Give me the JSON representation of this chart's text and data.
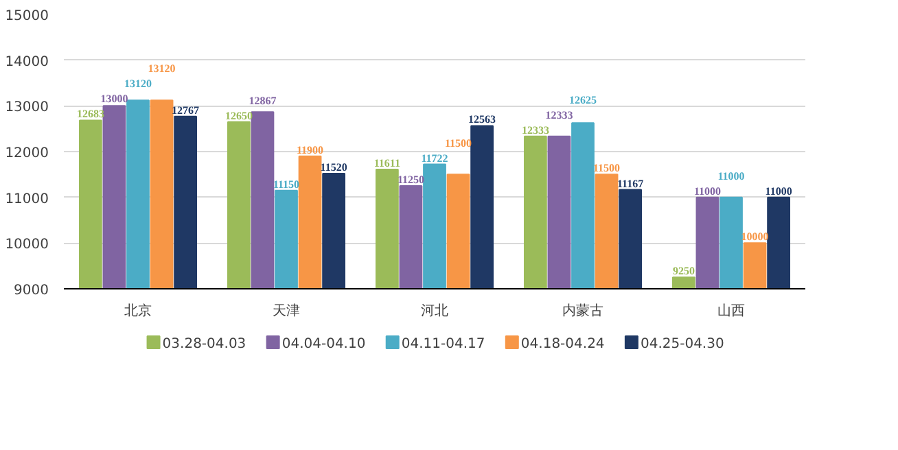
{
  "chart_data": {
    "type": "bar",
    "categories": [
      "北京",
      "天津",
      "河北",
      "内蒙古",
      "山西"
    ],
    "series": [
      {
        "name": "03.28-04.03",
        "color": "#9bbb59",
        "values": [
          12683,
          12650,
          11611,
          12333,
          9250
        ]
      },
      {
        "name": "04.04-04.10",
        "color": "#8064a2",
        "values": [
          13000,
          12867,
          11250,
          12333,
          11000
        ]
      },
      {
        "name": "04.11-04.17",
        "color": "#4bacc6",
        "values": [
          13120,
          11150,
          11722,
          12625,
          11000
        ]
      },
      {
        "name": "04.18-04.24",
        "color": "#f79646",
        "values": [
          13120,
          11900,
          11500,
          11500,
          10000
        ]
      },
      {
        "name": "04.25-04.30",
        "color": "#1f3864",
        "values": [
          12767,
          11520,
          12563,
          11167,
          11000
        ]
      }
    ],
    "ylim": [
      9000,
      15000
    ],
    "yticks": [
      9000,
      10000,
      11000,
      12000,
      13000,
      14000,
      15000
    ],
    "grid": "y",
    "legend": "bottom",
    "data_labels": true
  }
}
